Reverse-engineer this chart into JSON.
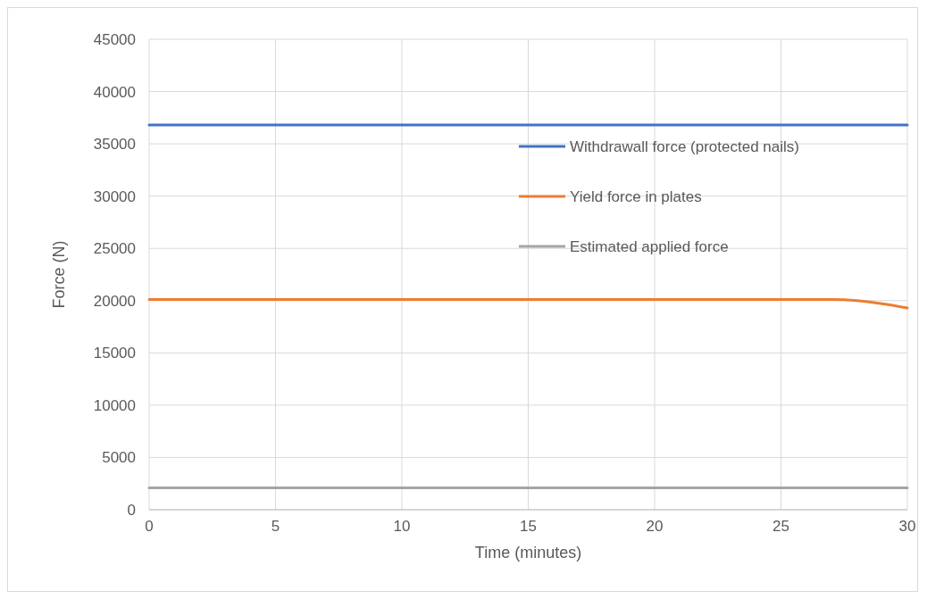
{
  "chart_data": {
    "type": "line",
    "xlabel": "Time (minutes)",
    "ylabel": "Force (N)",
    "xlim": [
      0,
      30
    ],
    "xticks": [
      0,
      5,
      10,
      15,
      20,
      25,
      30
    ],
    "ylim": [
      0,
      45000
    ],
    "yticks": [
      0,
      5000,
      10000,
      15000,
      20000,
      25000,
      30000,
      35000,
      40000,
      45000
    ],
    "grid": true,
    "legend": "top right",
    "marker": "none",
    "line_style": "solid",
    "series": [
      {
        "name": "Withdrawall force (protected nails)",
        "color": "#4472c4",
        "x": [
          0,
          30
        ],
        "values": [
          36800,
          36800
        ]
      },
      {
        "name": "Yield force in plates",
        "color": "#ed7d31",
        "x": [
          0,
          5,
          10,
          15,
          20,
          25,
          26,
          27,
          28,
          29,
          30
        ],
        "values": [
          20100,
          20100,
          20100,
          20100,
          20100,
          20100,
          20100,
          20100,
          20000,
          19700,
          19300
        ]
      },
      {
        "name": "Estimated applied force",
        "color": "#a5a5a5",
        "x": [
          0,
          30
        ],
        "values": [
          2100,
          2100
        ]
      }
    ]
  }
}
